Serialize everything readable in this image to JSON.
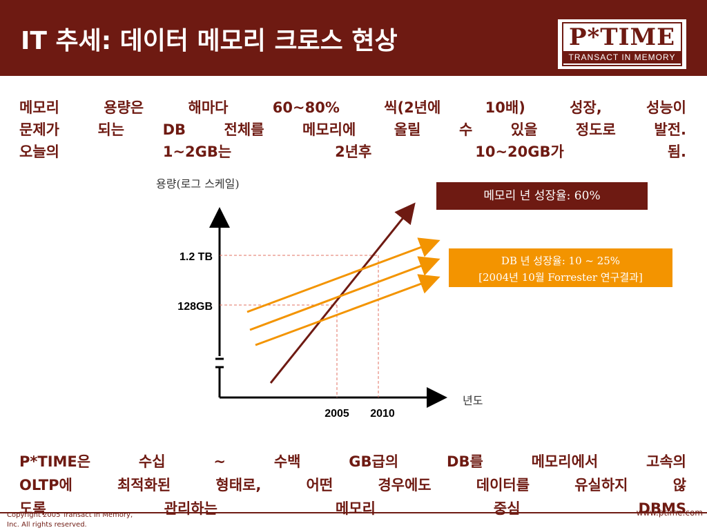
{
  "header": {
    "title": "IT 추세: 데이터 메모리 크로스 현상",
    "logo_top": "P*TIME",
    "logo_bottom": "TRANSACT IN MEMORY"
  },
  "intro": {
    "line1": "메모리 용량은 해마다 60~80% 씩(2년에 10배) 성장, 성능이",
    "line2": "문제가 되는 DB 전체를 메모리에 올릴 수 있을 정도로 발전.",
    "line3": "오늘의 1~2GB는 2년후 10~20GB가 됨."
  },
  "chart": {
    "y_axis_label": "용량(로그 스케일)",
    "x_axis_label": "년도",
    "y_tick_1": "1.2 TB",
    "y_tick_2": "128GB",
    "x_tick_1": "2005",
    "x_tick_2": "2010",
    "memory_line_color": "#6e1a12",
    "db_line_color": "#f39400"
  },
  "callouts": {
    "memory_growth": "메모리 년 성장율: 60%",
    "db_growth_line1": "DB 년 성장율:  10 ~ 25%",
    "db_growth_line2": "[2004년 10월 Forrester 연구결과]"
  },
  "bottom": {
    "line1": "P*TIME은 수십 ~ 수백 GB급의 DB를 메모리에서 고속의",
    "line2": "OLTP에 최적화된 형태로, 어떤 경우에도 데이터를 유실하지 않",
    "line3": "도록 관리하는 메모리 중심 DBMS"
  },
  "footer": {
    "copyright_line1": "Copyright 2005 Transact In Memory,",
    "copyright_line2": "Inc. All rights reserved.",
    "url": "www.ptime.com"
  }
}
